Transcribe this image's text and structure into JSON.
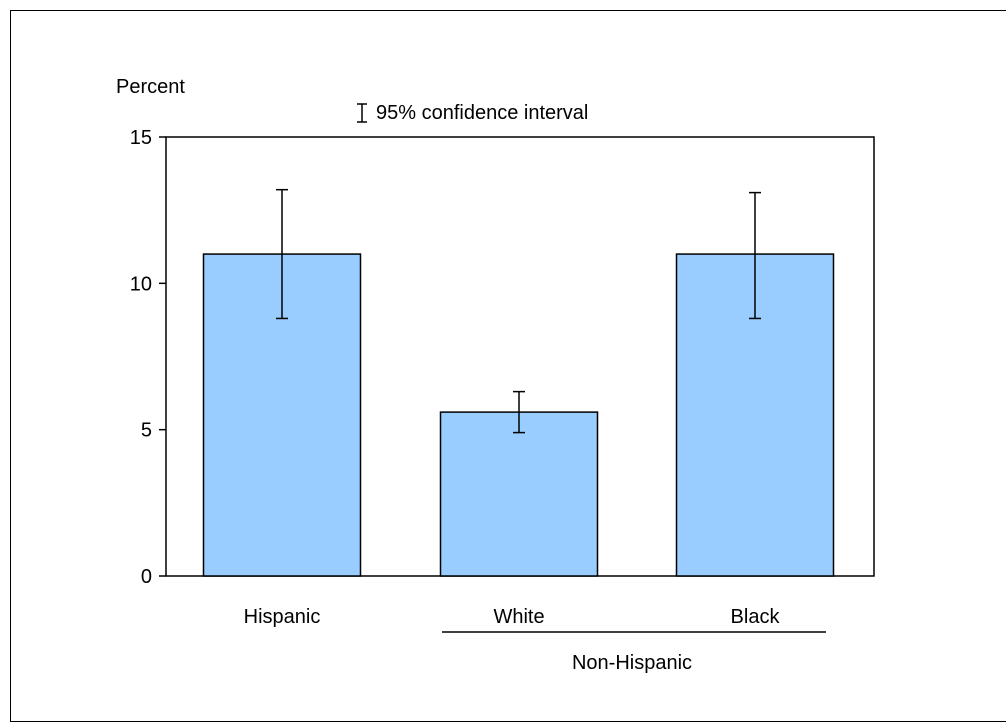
{
  "chart_data": {
    "type": "bar",
    "ylabel": "Percent",
    "legend": "95% confidence interval",
    "legend_position": "top",
    "categories": [
      "Hispanic",
      "White",
      "Black"
    ],
    "group_label": "Non-Hispanic",
    "values": [
      11.0,
      5.6,
      11.0
    ],
    "ci_low": [
      8.8,
      4.9,
      8.8
    ],
    "ci_high": [
      13.2,
      6.3,
      13.1
    ],
    "ylim": [
      0,
      15
    ],
    "yticks": [
      0,
      5,
      10,
      15
    ],
    "grid": false,
    "bar_color": "#99CCFF"
  }
}
